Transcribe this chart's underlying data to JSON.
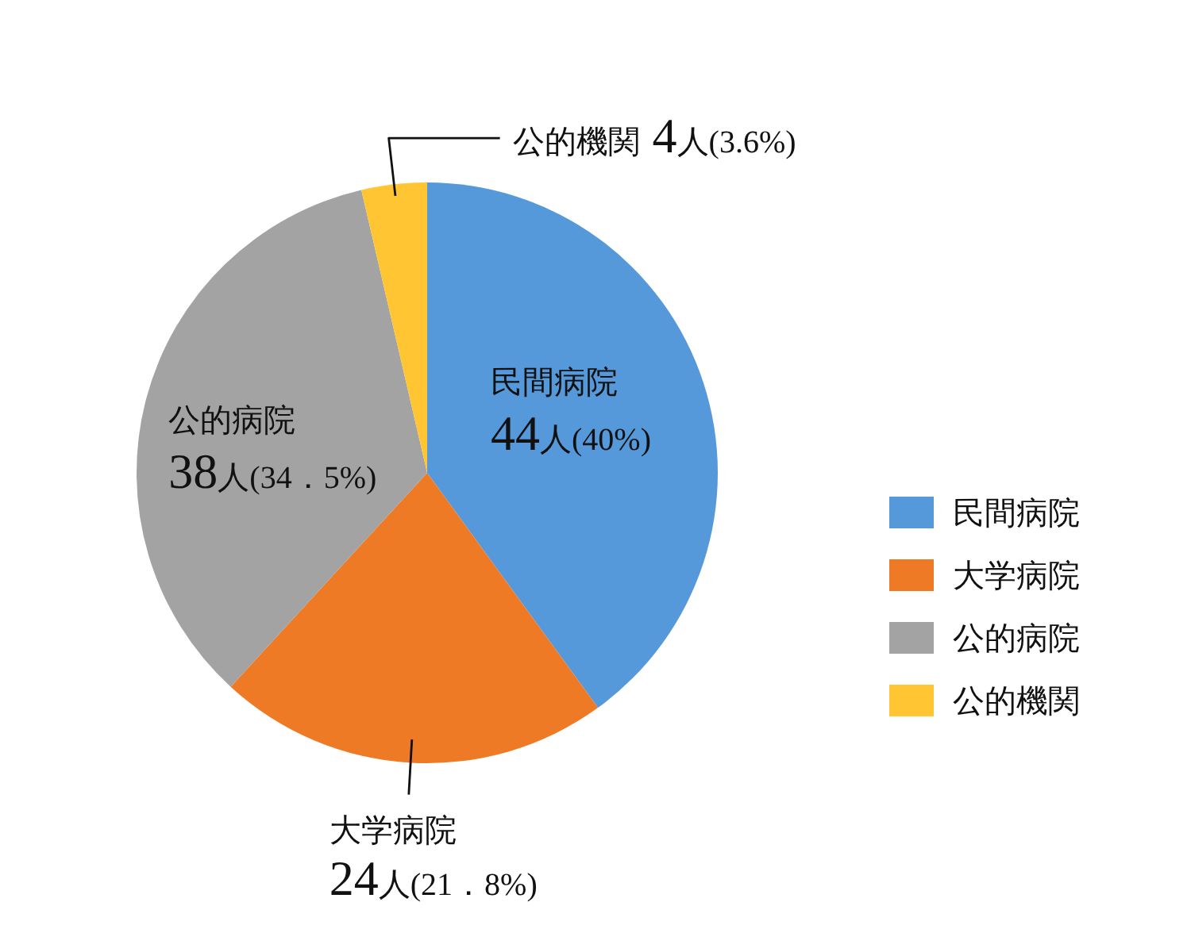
{
  "chart_data": {
    "type": "pie",
    "categories": [
      "民間病院",
      "大学病院",
      "公的病院",
      "公的機関"
    ],
    "values": [
      44,
      24,
      38,
      4
    ],
    "colors": [
      "#5599da",
      "#ef7a25",
      "#a3a3a3",
      "#ffc532"
    ],
    "value_labels": [
      "44人(40%)",
      "24人(21．8%)",
      "38人(34．5%)",
      "4人(3.6%)"
    ],
    "legend": "right"
  }
}
